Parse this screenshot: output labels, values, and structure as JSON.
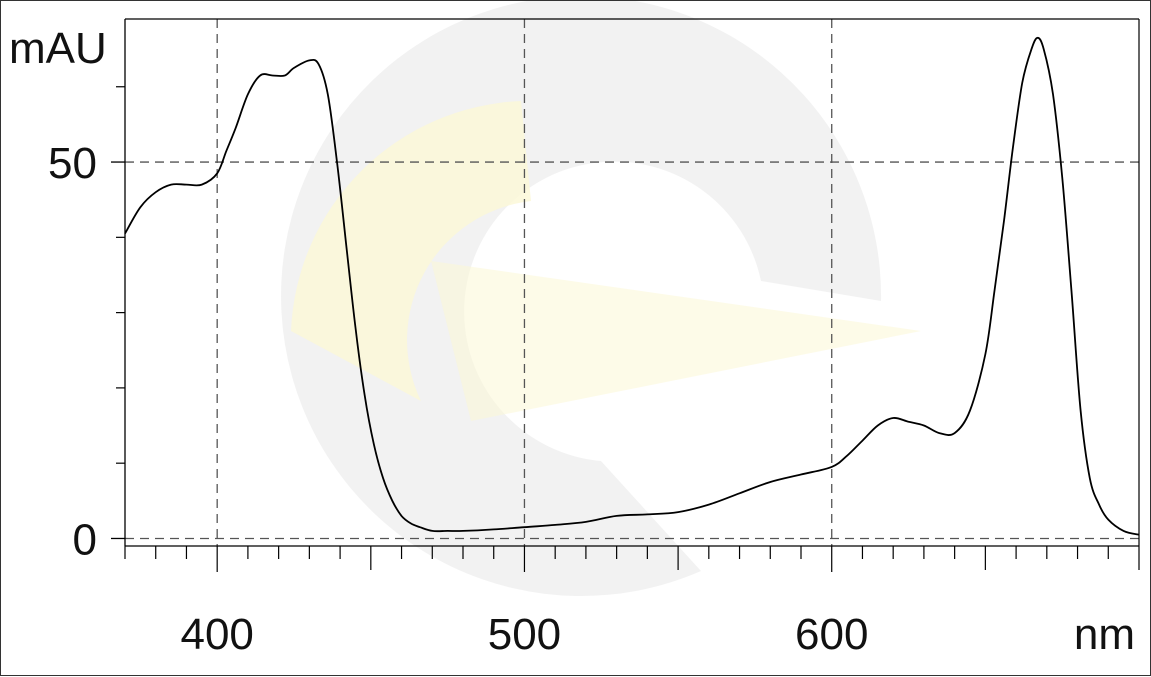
{
  "chart_data": {
    "type": "line",
    "title": "",
    "xlabel": "nm",
    "ylabel": "mAU",
    "xlim": [
      370,
      700
    ],
    "ylim": [
      -1,
      69
    ],
    "x_ticks": [
      400,
      500,
      600
    ],
    "x_tick_labels": [
      "400",
      "500",
      "600"
    ],
    "y_ticks": [
      0,
      50
    ],
    "y_tick_labels": [
      "0",
      "50"
    ],
    "x_minor_step": 10,
    "y_minor_ticks": [
      10,
      20,
      30,
      40,
      60
    ],
    "grid": true,
    "legend": "none",
    "colors": {
      "line": "#000000",
      "grid": "#555555",
      "axis": "#000000",
      "watermark_yellow": "#fbf7d6",
      "watermark_gray": "#e8e8e8"
    },
    "series": [
      {
        "x": [
          370,
          375,
          380,
          385,
          390,
          395,
          400,
          403,
          406,
          410,
          414,
          418,
          422,
          425,
          430,
          433,
          436,
          439,
          442,
          445,
          448,
          451,
          454,
          457,
          460,
          463,
          466,
          470,
          475,
          480,
          490,
          500,
          510,
          520,
          530,
          540,
          550,
          560,
          570,
          580,
          590,
          600,
          605,
          610,
          615,
          620,
          625,
          630,
          635,
          640,
          645,
          650,
          653,
          656,
          659,
          662,
          665,
          667,
          669,
          672,
          675,
          678,
          681,
          684,
          687,
          690,
          695,
          700
        ],
        "y": [
          40.5,
          44,
          46,
          47,
          47,
          47,
          48.5,
          51.5,
          54.5,
          59,
          61.5,
          61.5,
          61.5,
          62.5,
          63.5,
          63,
          59,
          50,
          39,
          28,
          19,
          12.5,
          8,
          5,
          3,
          2,
          1.5,
          1,
          1,
          1,
          1.2,
          1.5,
          1.8,
          2.2,
          3,
          3.2,
          3.5,
          4.5,
          6,
          7.5,
          8.5,
          9.5,
          11,
          13,
          15,
          16,
          15.5,
          15,
          14,
          14,
          17,
          24.5,
          33,
          42,
          52,
          60.5,
          65,
          66.5,
          65,
          59,
          48,
          33,
          17,
          8,
          4.5,
          2.5,
          1,
          0.5
        ]
      }
    ],
    "watermark": true
  }
}
